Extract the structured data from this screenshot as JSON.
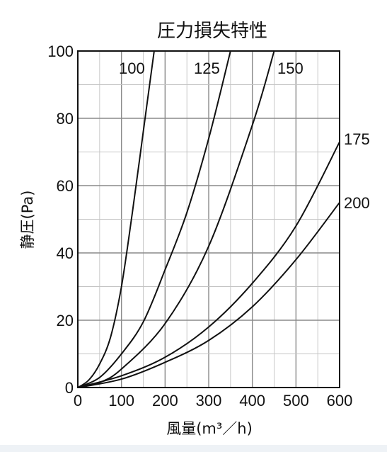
{
  "chart_data": {
    "type": "line",
    "title": "圧力損失特性",
    "xlabel": "風量(m³／h)",
    "ylabel": "静圧(Pa)",
    "xlim": [
      0,
      600
    ],
    "ylim": [
      0,
      100
    ],
    "xticks": [
      0,
      100,
      200,
      300,
      400,
      500,
      600
    ],
    "yticks": [
      0,
      20,
      40,
      60,
      80,
      100
    ],
    "xtick_labels": [
      "0",
      "100",
      "200",
      "300",
      "400",
      "500",
      "600"
    ],
    "ytick_labels": [
      "0",
      "20",
      "40",
      "60",
      "80",
      "100"
    ],
    "grid": true,
    "series": [
      {
        "name": "100",
        "x": [
          0,
          25,
          50,
          75,
          100,
          125,
          150,
          175
        ],
        "y": [
          0,
          2.2,
          7,
          15,
          30,
          52,
          76,
          100
        ]
      },
      {
        "name": "125",
        "x": [
          0,
          50,
          100,
          150,
          200,
          250,
          300,
          350
        ],
        "y": [
          0,
          3,
          10,
          19.5,
          35,
          52,
          74,
          100
        ]
      },
      {
        "name": "150",
        "x": [
          0,
          50,
          100,
          200,
          300,
          400,
          450
        ],
        "y": [
          0,
          1.5,
          5.5,
          19,
          42,
          78,
          100
        ]
      },
      {
        "name": "175",
        "x": [
          0,
          100,
          200,
          300,
          400,
          500,
          600
        ],
        "y": [
          0,
          3.5,
          9,
          18,
          31,
          48,
          73
        ]
      },
      {
        "name": "200",
        "x": [
          0,
          100,
          200,
          300,
          400,
          500,
          600
        ],
        "y": [
          0,
          2.5,
          7.5,
          14,
          24,
          38,
          55
        ]
      }
    ]
  }
}
